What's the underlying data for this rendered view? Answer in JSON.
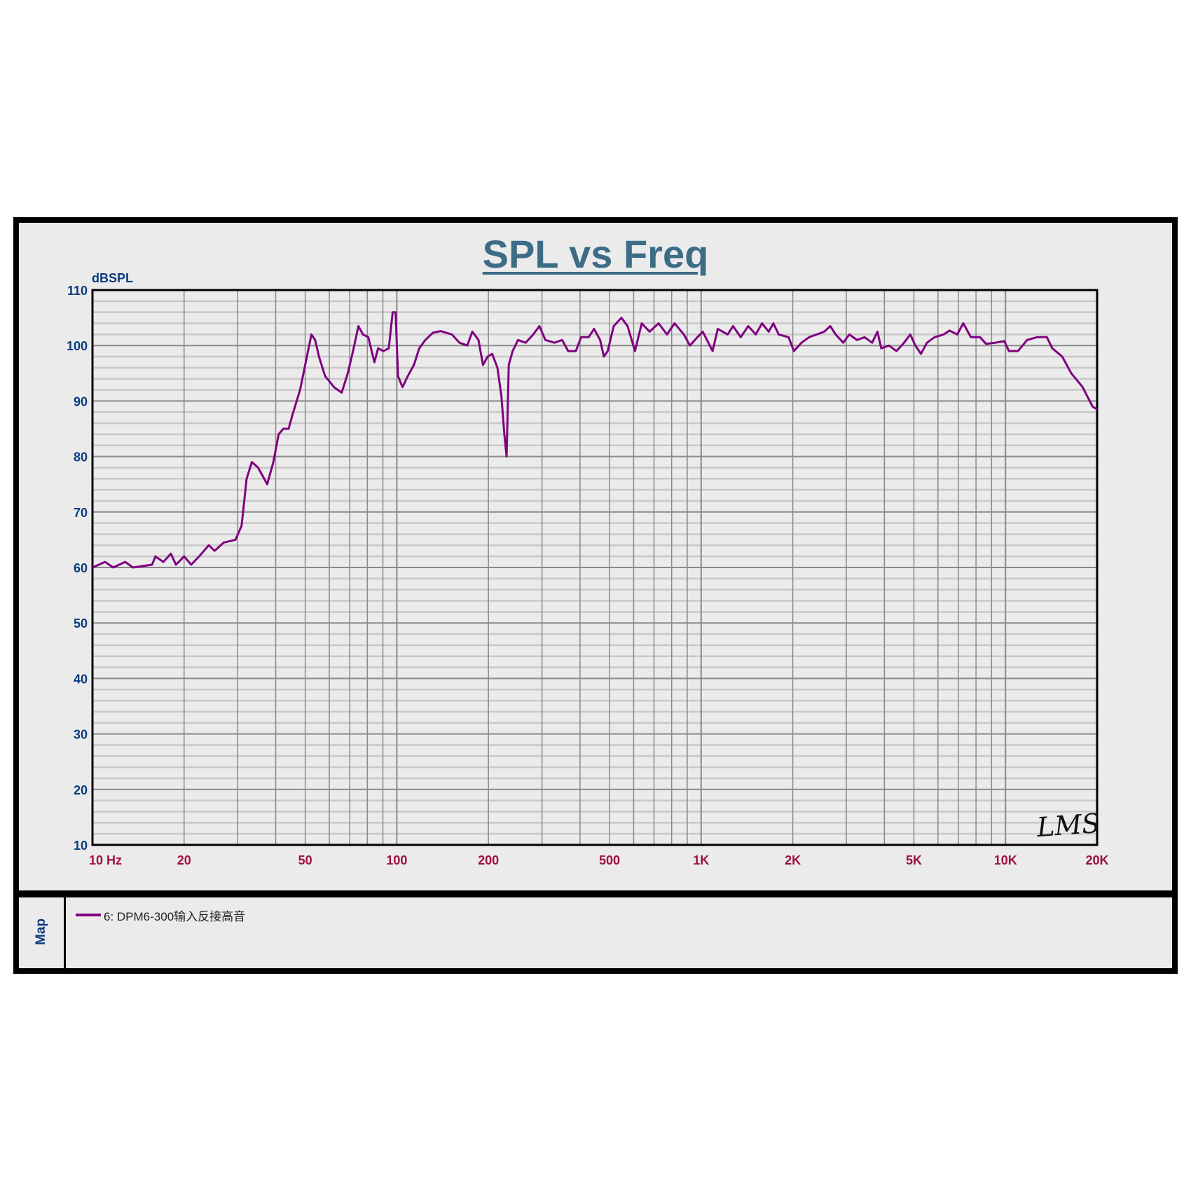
{
  "chart_data": {
    "type": "line",
    "title": "SPL vs Freq",
    "ylabel": "dBSPL",
    "xlabel": "",
    "xscale": "log",
    "xlim": [
      10,
      20000
    ],
    "ylim": [
      10,
      110
    ],
    "grid": true,
    "legend_placement": "bottom panel",
    "y_ticks": [
      "10",
      "20",
      "30",
      "40",
      "50",
      "60",
      "70",
      "80",
      "90",
      "100",
      "110"
    ],
    "x_ticks": [
      {
        "value": 10,
        "label": "10  Hz"
      },
      {
        "value": 20,
        "label": "20"
      },
      {
        "value": 50,
        "label": "50"
      },
      {
        "value": 100,
        "label": "100"
      },
      {
        "value": 200,
        "label": "200"
      },
      {
        "value": 500,
        "label": "500"
      },
      {
        "value": 1000,
        "label": "1K"
      },
      {
        "value": 2000,
        "label": "2K"
      },
      {
        "value": 5000,
        "label": "5K"
      },
      {
        "value": 10000,
        "label": "10K"
      },
      {
        "value": 20000,
        "label": "20K"
      }
    ],
    "series": [
      {
        "name": "6: DPM6-300输入反接高音",
        "color": "#800080",
        "x": [
          10,
          11,
          11.7,
          12.8,
          13.6,
          15.7,
          16.1,
          17.1,
          18.1,
          18.8,
          20,
          21.1,
          22.4,
          24.1,
          25.2,
          27,
          29.5,
          30.9,
          32.1,
          33.4,
          35,
          37.5,
          39.3,
          40.9,
          42.4,
          44.1,
          45.4,
          48.1,
          50,
          52.4,
          53.9,
          55.5,
          58.1,
          62.2,
          65.9,
          69,
          71.8,
          74.8,
          77.4,
          80.6,
          84.4,
          86.8,
          90.4,
          94.1,
          96.9,
          99.1,
          100.9,
          104.4,
          108.7,
          113.8,
          118.5,
          124.1,
          131.4,
          139.2,
          151.7,
          160.7,
          170.3,
          177.1,
          185.5,
          191.9,
          198.8,
          205.7,
          214.1,
          220.5,
          225.6,
          229.4,
          233.3,
          240.2,
          250.2,
          265,
          280.7,
          294,
          307.8,
          329.7,
          349.3,
          365.6,
          387.3,
          403,
          427,
          444.6,
          465.6,
          478.9,
          493,
          516,
          547,
          573,
          606,
          638,
          677,
          725,
          772,
          818,
          877,
          918,
          972,
          1012,
          1090,
          1134,
          1222,
          1273,
          1349,
          1428,
          1512,
          1585,
          1668,
          1727,
          1798,
          1938,
          2017,
          2137,
          2263,
          2397,
          2537,
          2656,
          2767,
          2930,
          3068,
          3250,
          3442,
          3646,
          3795,
          3907,
          4138,
          4383,
          4642,
          4864,
          5058,
          5272,
          5520,
          5848,
          6266,
          6550,
          6939,
          7266,
          7697,
          8246,
          8635,
          9250,
          9908,
          10260,
          10990,
          11780,
          12700,
          13680,
          14250,
          15360,
          16450,
          17920,
          19320,
          20000
        ],
        "y": [
          60,
          61,
          60,
          61,
          60,
          60.5,
          62,
          61,
          62.5,
          60.5,
          62,
          60.5,
          62,
          64,
          63,
          64.5,
          65,
          67.5,
          76,
          79,
          78,
          75,
          79,
          84,
          85,
          85,
          87.5,
          92,
          96.5,
          102,
          101,
          98,
          94.5,
          92.5,
          91.5,
          95,
          99,
          103.5,
          102,
          101.5,
          97,
          99.5,
          99,
          99.5,
          106,
          106,
          94.5,
          92.5,
          94.5,
          96.5,
          99.5,
          101,
          102.3,
          102.6,
          102,
          100.5,
          100,
          102.5,
          101,
          96.5,
          98,
          98.5,
          96,
          91,
          84,
          80,
          96.5,
          99,
          101,
          100.5,
          102,
          103.5,
          101,
          100.5,
          101,
          99,
          99,
          101.5,
          101.5,
          103,
          101,
          98,
          99,
          103.5,
          105,
          103.5,
          99,
          104,
          102.5,
          104,
          102,
          104,
          102,
          100,
          101.5,
          102.5,
          99,
          103,
          102,
          103.5,
          101.5,
          103.5,
          102,
          104,
          102.5,
          104,
          102,
          101.5,
          99,
          100.5,
          101.5,
          102,
          102.5,
          103.5,
          102,
          100.5,
          102,
          101,
          101.5,
          100.5,
          102.5,
          99.5,
          100,
          99,
          100.5,
          102,
          100,
          98.5,
          100.5,
          101.5,
          102,
          102.7,
          102,
          104,
          101.5,
          101.5,
          100.3,
          100.5,
          100.8,
          99,
          99,
          101,
          101.5,
          101.5,
          99.5,
          98,
          95,
          92.5,
          89,
          88.5
        ]
      }
    ]
  },
  "legend": {
    "panel_label": "Map",
    "entry": "6: DPM6-300输入反接高音"
  },
  "watermark": "LMS"
}
